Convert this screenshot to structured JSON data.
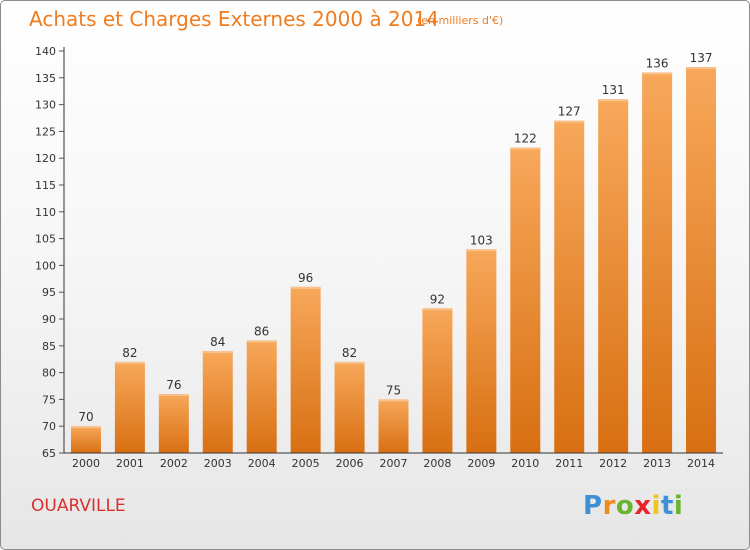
{
  "header": {
    "title": "Achats et Charges Externes 2000 à 2014",
    "units": "(en milliers d'€)"
  },
  "footer": {
    "place": "OUARVILLE",
    "brand": "Proxiti",
    "brand_letters": [
      "P",
      "r",
      "o",
      "x",
      "i",
      "t",
      "i"
    ],
    "brand_colors": [
      "#3d8fd6",
      "#f08a1c",
      "#6ab42d",
      "#e8242b",
      "#f0c419",
      "#3d8fd6",
      "#6ab42d"
    ]
  },
  "colors": {
    "bar_light": "#f7a85a",
    "bar_dark": "#d86f12",
    "axis": "#333333",
    "grid_tick": "#555555",
    "label": "#333333"
  },
  "chart_data": {
    "type": "bar",
    "title": "Achats et Charges Externes 2000 à 2014",
    "subtitle": "(en milliers d'€)",
    "xlabel": "",
    "ylabel": "",
    "categories": [
      "2000",
      "2001",
      "2002",
      "2003",
      "2004",
      "2005",
      "2006",
      "2007",
      "2008",
      "2009",
      "2010",
      "2011",
      "2012",
      "2013",
      "2014"
    ],
    "values": [
      70,
      82,
      76,
      84,
      86,
      96,
      82,
      75,
      92,
      103,
      122,
      127,
      131,
      136,
      137
    ],
    "ylim": [
      65,
      140
    ],
    "yticks": [
      65,
      70,
      75,
      80,
      85,
      90,
      95,
      100,
      105,
      110,
      115,
      120,
      125,
      130,
      135,
      140
    ],
    "grid": false,
    "data_labels": true
  }
}
